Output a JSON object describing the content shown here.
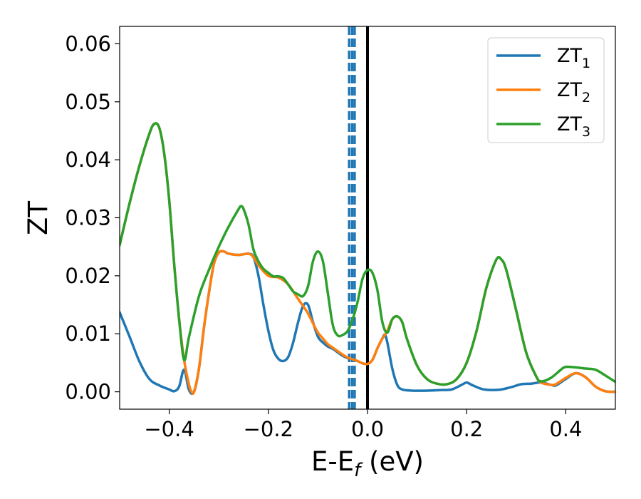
{
  "chart_data": {
    "type": "line",
    "title": "",
    "xlabel": "E-E",
    "xlabel_sub": "f",
    "xlabel_unit": " (eV)",
    "ylabel": "ZT",
    "xlim": [
      -0.5,
      0.5
    ],
    "ylim": [
      -0.003,
      0.063
    ],
    "xticks": [
      -0.4,
      -0.2,
      0.0,
      0.2,
      0.4
    ],
    "xtick_labels": [
      "−0.4",
      "−0.2",
      "0.0",
      "0.2",
      "0.4"
    ],
    "yticks": [
      0.0,
      0.01,
      0.02,
      0.03,
      0.04,
      0.05,
      0.06
    ],
    "ytick_labels": [
      "0.00",
      "0.01",
      "0.02",
      "0.03",
      "0.04",
      "0.05",
      "0.06"
    ],
    "grid": false,
    "legend_position": "top-right",
    "vlines": [
      {
        "x": 0.0,
        "style": "solid",
        "color": "#000000"
      },
      {
        "x": -0.037,
        "style": "dashed",
        "color": "#1f77b4"
      },
      {
        "x": -0.031,
        "style": "dashed",
        "color": "#1f77b4"
      },
      {
        "x": -0.026,
        "style": "dashed",
        "color": "#1f77b4"
      }
    ],
    "series": [
      {
        "name": "ZT",
        "sub": "1",
        "color": "#1f77b4",
        "points": [
          [
            -0.5,
            0.0137
          ],
          [
            -0.48,
            0.0095
          ],
          [
            -0.46,
            0.0052
          ],
          [
            -0.44,
            0.0022
          ],
          [
            -0.42,
            0.0011
          ],
          [
            -0.4,
            0.0004
          ],
          [
            -0.39,
            0.0001
          ],
          [
            -0.38,
            0.0009
          ],
          [
            -0.37,
            0.0038
          ],
          [
            -0.36,
            0.0003
          ],
          [
            -0.35,
            0.0
          ],
          [
            -0.34,
            0.004
          ],
          [
            -0.33,
            0.011
          ],
          [
            -0.32,
            0.017
          ],
          [
            -0.31,
            0.022
          ],
          [
            -0.3,
            0.024
          ],
          [
            -0.29,
            0.0242
          ],
          [
            -0.28,
            0.0238
          ],
          [
            -0.26,
            0.0236
          ],
          [
            -0.24,
            0.0238
          ],
          [
            -0.23,
            0.0232
          ],
          [
            -0.22,
            0.02
          ],
          [
            -0.21,
            0.015
          ],
          [
            -0.2,
            0.0105
          ],
          [
            -0.19,
            0.0072
          ],
          [
            -0.18,
            0.0057
          ],
          [
            -0.17,
            0.0053
          ],
          [
            -0.16,
            0.006
          ],
          [
            -0.15,
            0.0085
          ],
          [
            -0.14,
            0.012
          ],
          [
            -0.13,
            0.0148
          ],
          [
            -0.12,
            0.015
          ],
          [
            -0.11,
            0.012
          ],
          [
            -0.1,
            0.0095
          ],
          [
            -0.09,
            0.0085
          ],
          [
            -0.08,
            0.0078
          ],
          [
            -0.07,
            0.0074
          ],
          [
            -0.06,
            0.0068
          ],
          [
            -0.05,
            0.0062
          ],
          [
            -0.04,
            0.0058
          ],
          [
            -0.03,
            0.0056
          ],
          [
            -0.02,
            0.0053
          ],
          [
            -0.01,
            0.0049
          ],
          [
            0.0,
            0.0048
          ],
          [
            0.01,
            0.0055
          ],
          [
            0.02,
            0.0075
          ],
          [
            0.03,
            0.0092
          ],
          [
            0.035,
            0.0098
          ],
          [
            0.04,
            0.0085
          ],
          [
            0.05,
            0.004
          ],
          [
            0.06,
            0.0012
          ],
          [
            0.07,
            0.0004
          ],
          [
            0.09,
            0.0002
          ],
          [
            0.12,
            0.0002
          ],
          [
            0.15,
            0.0003
          ],
          [
            0.17,
            0.0004
          ],
          [
            0.19,
            0.0012
          ],
          [
            0.2,
            0.0016
          ],
          [
            0.21,
            0.0012
          ],
          [
            0.23,
            0.0005
          ],
          [
            0.25,
            0.0003
          ],
          [
            0.27,
            0.0004
          ],
          [
            0.29,
            0.0008
          ],
          [
            0.31,
            0.0013
          ],
          [
            0.33,
            0.0014
          ],
          [
            0.35,
            0.0016
          ],
          [
            0.37,
            0.0012
          ],
          [
            0.38,
            0.0011
          ],
          [
            0.4,
            0.0022
          ],
          [
            0.42,
            0.0032
          ],
          [
            0.44,
            0.0025
          ],
          [
            0.46,
            0.0009
          ],
          [
            0.48,
            0.0001
          ],
          [
            0.5,
            0.0
          ]
        ]
      },
      {
        "name": "ZT",
        "sub": "2",
        "color": "#ff7f0e",
        "points": [
          [
            -0.5,
            0.0253
          ],
          [
            -0.48,
            0.0325
          ],
          [
            -0.46,
            0.039
          ],
          [
            -0.44,
            0.0445
          ],
          [
            -0.43,
            0.0462
          ],
          [
            -0.42,
            0.0455
          ],
          [
            -0.41,
            0.041
          ],
          [
            -0.4,
            0.033
          ],
          [
            -0.39,
            0.022
          ],
          [
            -0.38,
            0.0125
          ],
          [
            -0.37,
            0.0055
          ],
          [
            -0.36,
            0.0012
          ],
          [
            -0.355,
            0.0
          ],
          [
            -0.35,
            0.0
          ],
          [
            -0.34,
            0.004
          ],
          [
            -0.33,
            0.011
          ],
          [
            -0.32,
            0.017
          ],
          [
            -0.31,
            0.022
          ],
          [
            -0.3,
            0.024
          ],
          [
            -0.29,
            0.0242
          ],
          [
            -0.28,
            0.0238
          ],
          [
            -0.26,
            0.0236
          ],
          [
            -0.24,
            0.0238
          ],
          [
            -0.23,
            0.0232
          ],
          [
            -0.22,
            0.0218
          ],
          [
            -0.2,
            0.02
          ],
          [
            -0.18,
            0.0197
          ],
          [
            -0.16,
            0.0185
          ],
          [
            -0.14,
            0.016
          ],
          [
            -0.13,
            0.0148
          ],
          [
            -0.12,
            0.0135
          ],
          [
            -0.11,
            0.0118
          ],
          [
            -0.1,
            0.0102
          ],
          [
            -0.09,
            0.0092
          ],
          [
            -0.08,
            0.0082
          ],
          [
            -0.07,
            0.0076
          ],
          [
            -0.06,
            0.007
          ],
          [
            -0.05,
            0.0064
          ],
          [
            -0.04,
            0.0059
          ],
          [
            -0.03,
            0.0056
          ],
          [
            -0.02,
            0.0053
          ],
          [
            -0.01,
            0.0049
          ],
          [
            0.0,
            0.0048
          ],
          [
            0.01,
            0.0055
          ],
          [
            0.02,
            0.0075
          ],
          [
            0.03,
            0.0092
          ],
          [
            0.035,
            0.0098
          ],
          [
            0.04,
            0.0105
          ],
          [
            0.05,
            0.0125
          ],
          [
            0.06,
            0.013
          ],
          [
            0.07,
            0.012
          ],
          [
            0.08,
            0.009
          ],
          [
            0.1,
            0.0045
          ],
          [
            0.12,
            0.0022
          ],
          [
            0.14,
            0.0014
          ],
          [
            0.16,
            0.0013
          ],
          [
            0.18,
            0.0022
          ],
          [
            0.2,
            0.005
          ],
          [
            0.22,
            0.0105
          ],
          [
            0.24,
            0.018
          ],
          [
            0.26,
            0.0228
          ],
          [
            0.27,
            0.0228
          ],
          [
            0.28,
            0.021
          ],
          [
            0.3,
            0.014
          ],
          [
            0.32,
            0.0068
          ],
          [
            0.34,
            0.0027
          ],
          [
            0.35,
            0.0016
          ],
          [
            0.37,
            0.0012
          ],
          [
            0.38,
            0.0013
          ],
          [
            0.4,
            0.0024
          ],
          [
            0.42,
            0.0032
          ],
          [
            0.44,
            0.0025
          ],
          [
            0.46,
            0.0009
          ],
          [
            0.48,
            0.0001
          ],
          [
            0.5,
            0.0
          ]
        ]
      },
      {
        "name": "ZT",
        "sub": "3",
        "color": "#2ca02c",
        "points": [
          [
            -0.5,
            0.0253
          ],
          [
            -0.48,
            0.0325
          ],
          [
            -0.46,
            0.039
          ],
          [
            -0.44,
            0.0445
          ],
          [
            -0.43,
            0.0462
          ],
          [
            -0.42,
            0.0455
          ],
          [
            -0.41,
            0.041
          ],
          [
            -0.4,
            0.033
          ],
          [
            -0.39,
            0.022
          ],
          [
            -0.38,
            0.0125
          ],
          [
            -0.37,
            0.0055
          ],
          [
            -0.36,
            0.0095
          ],
          [
            -0.34,
            0.0165
          ],
          [
            -0.32,
            0.021
          ],
          [
            -0.3,
            0.025
          ],
          [
            -0.28,
            0.0285
          ],
          [
            -0.26,
            0.0315
          ],
          [
            -0.255,
            0.032
          ],
          [
            -0.25,
            0.0315
          ],
          [
            -0.24,
            0.0288
          ],
          [
            -0.23,
            0.0245
          ],
          [
            -0.22,
            0.0225
          ],
          [
            -0.21,
            0.0212
          ],
          [
            -0.2,
            0.0205
          ],
          [
            -0.19,
            0.0199
          ],
          [
            -0.18,
            0.0199
          ],
          [
            -0.17,
            0.0196
          ],
          [
            -0.16,
            0.0185
          ],
          [
            -0.15,
            0.0173
          ],
          [
            -0.14,
            0.0168
          ],
          [
            -0.13,
            0.0165
          ],
          [
            -0.12,
            0.0182
          ],
          [
            -0.11,
            0.0225
          ],
          [
            -0.1,
            0.0242
          ],
          [
            -0.09,
            0.0225
          ],
          [
            -0.08,
            0.017
          ],
          [
            -0.07,
            0.0115
          ],
          [
            -0.06,
            0.0097
          ],
          [
            -0.05,
            0.0098
          ],
          [
            -0.04,
            0.0105
          ],
          [
            -0.03,
            0.0125
          ],
          [
            -0.02,
            0.0155
          ],
          [
            -0.01,
            0.0195
          ],
          [
            0.0,
            0.021
          ],
          [
            0.01,
            0.0205
          ],
          [
            0.02,
            0.0175
          ],
          [
            0.03,
            0.012
          ],
          [
            0.04,
            0.0102
          ],
          [
            0.05,
            0.0125
          ],
          [
            0.06,
            0.013
          ],
          [
            0.07,
            0.012
          ],
          [
            0.08,
            0.009
          ],
          [
            0.1,
            0.0045
          ],
          [
            0.12,
            0.0022
          ],
          [
            0.14,
            0.0014
          ],
          [
            0.16,
            0.0013
          ],
          [
            0.18,
            0.0022
          ],
          [
            0.2,
            0.005
          ],
          [
            0.22,
            0.0105
          ],
          [
            0.24,
            0.018
          ],
          [
            0.26,
            0.0228
          ],
          [
            0.27,
            0.0228
          ],
          [
            0.28,
            0.021
          ],
          [
            0.3,
            0.014
          ],
          [
            0.32,
            0.0068
          ],
          [
            0.34,
            0.0027
          ],
          [
            0.35,
            0.0018
          ],
          [
            0.37,
            0.0024
          ],
          [
            0.39,
            0.0038
          ],
          [
            0.4,
            0.0043
          ],
          [
            0.42,
            0.0042
          ],
          [
            0.44,
            0.004
          ],
          [
            0.46,
            0.0038
          ],
          [
            0.48,
            0.0028
          ],
          [
            0.5,
            0.0017
          ]
        ]
      }
    ]
  }
}
